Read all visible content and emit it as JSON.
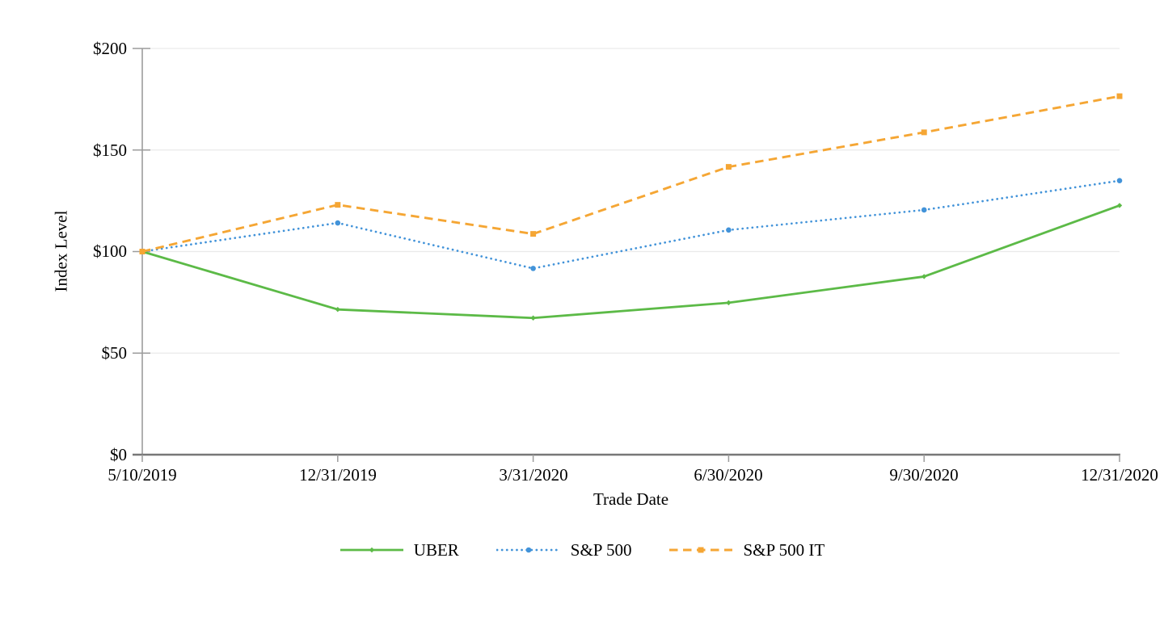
{
  "chart_data": {
    "type": "line",
    "title": "",
    "xlabel": "Trade Date",
    "ylabel": "Index Level",
    "x_tick_labels": [
      "5/10/2019",
      "12/31/2019",
      "3/31/2020",
      "6/30/2020",
      "9/30/2020",
      "12/31/2020"
    ],
    "y_tick_labels": [
      "$0",
      "$50",
      "$100",
      "$150",
      "$200"
    ],
    "y_ticks": [
      0,
      50,
      100,
      150,
      200
    ],
    "ylim": [
      0,
      200
    ],
    "grid": "horizontal",
    "legend_position": "bottom",
    "colors": {
      "axis_x": "#777777",
      "axis_y": "#9c9c9c",
      "gridline": "#eaeaea",
      "text": "#000000"
    },
    "series": [
      {
        "name": "UBER",
        "color": "#5cba47",
        "style": "solid",
        "marker": "diamond",
        "values": [
          100,
          71.5,
          67.3,
          74.8,
          87.7,
          122.7
        ]
      },
      {
        "name": "S&P 500",
        "color": "#4293d9",
        "style": "dotted",
        "marker": "circle",
        "values": [
          100,
          114.1,
          91.7,
          110.6,
          120.5,
          134.9
        ]
      },
      {
        "name": "S&P 500 IT",
        "color": "#f5a634",
        "style": "dashed",
        "marker": "square",
        "values": [
          100,
          123.0,
          108.7,
          141.7,
          158.7,
          176.5
        ]
      }
    ]
  }
}
